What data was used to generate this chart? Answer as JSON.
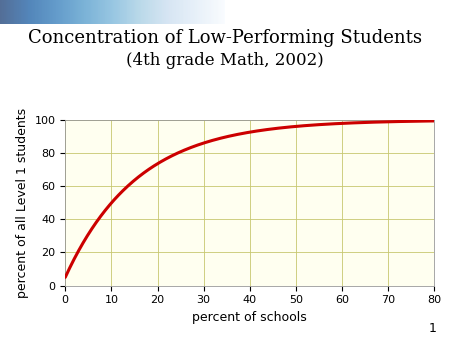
{
  "title_line1": "Concentration of Low-Performing Students",
  "title_line2": "(4",
  "title_th": "th",
  "title_line2_rest": " grade Math, 2002)",
  "xlabel": "percent of schools",
  "ylabel": "percent of all Level 1 students",
  "xlim": [
    0,
    80
  ],
  "ylim": [
    0,
    100
  ],
  "xticks": [
    0,
    10,
    20,
    30,
    40,
    50,
    60,
    70,
    80
  ],
  "yticks": [
    0,
    20,
    40,
    60,
    80,
    100
  ],
  "curve_color": "#cc0000",
  "curve_linewidth": 2.2,
  "grid_color": "#c8c870",
  "plot_bg_color": "#fffff0",
  "slide_bg_color": "#f5f5e8",
  "fig_bg_color": "#ffffff",
  "title_fontsize": 13,
  "subtitle_fontsize": 12,
  "axis_label_fontsize": 9,
  "tick_fontsize": 8,
  "page_number": "1",
  "page_num_fontsize": 9,
  "curve_alpha": 0.35
}
